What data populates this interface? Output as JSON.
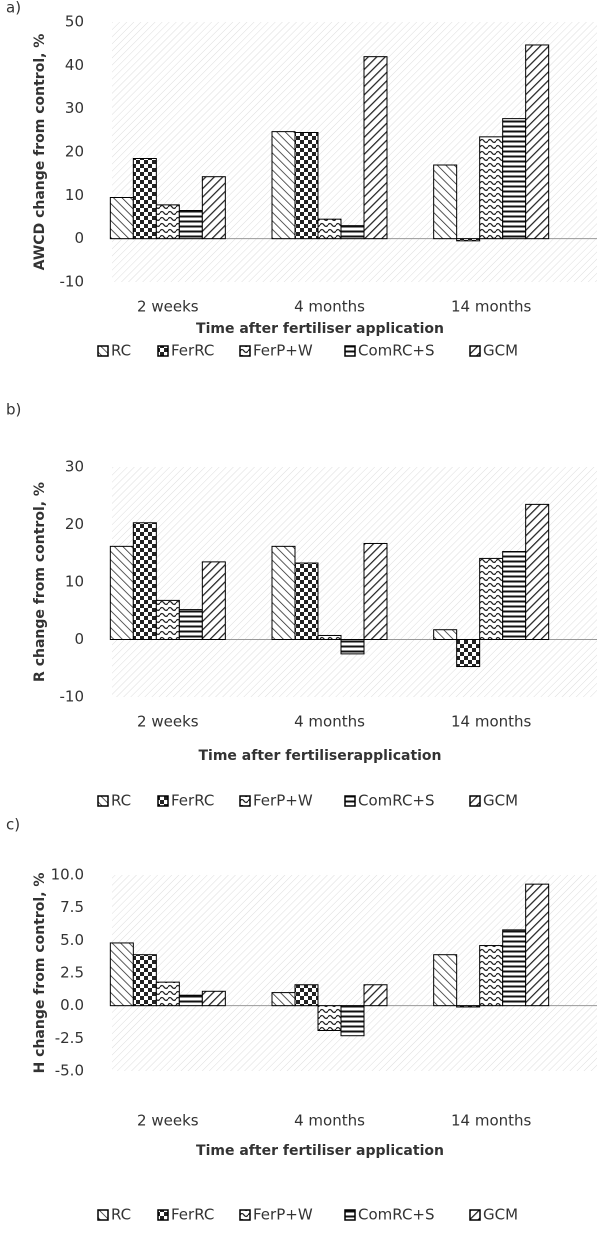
{
  "chart_data": [
    {
      "type": "bar",
      "panel_label": "a)",
      "y_label": "AWCD change from control, %",
      "x_label": "Time after fertiliser application",
      "categories": [
        "2 weeks",
        "4 months",
        "14 months"
      ],
      "series": [
        {
          "name": "RC",
          "color": "#000000",
          "values": [
            9.5,
            24.7,
            17
          ]
        },
        {
          "name": "FerRC",
          "color": "#000000",
          "values": [
            18.5,
            24.5,
            -0.5
          ]
        },
        {
          "name": "FerP+W",
          "color": "#000000",
          "values": [
            7.8,
            4.5,
            23.5
          ]
        },
        {
          "name": "ComRC+S",
          "color": "#000000",
          "values": [
            6.5,
            3,
            27.7
          ]
        },
        {
          "name": "GCM",
          "color": "#000000",
          "values": [
            14.3,
            42,
            44.7
          ]
        }
      ],
      "ylim": [
        -10,
        50
      ],
      "yticks": [
        -10,
        0,
        10,
        20,
        30,
        40,
        50
      ]
    },
    {
      "type": "bar",
      "panel_label": "b)",
      "y_label": "R change from control, %",
      "x_label": "Time after fertiliserapplication",
      "categories": [
        "2 weeks",
        "4 months",
        "14 months"
      ],
      "series": [
        {
          "name": "RC",
          "color": "#000000",
          "values": [
            16.2,
            16.2,
            1.7
          ]
        },
        {
          "name": "FerRC",
          "color": "#000000",
          "values": [
            20.3,
            13.3,
            -4.7
          ]
        },
        {
          "name": "FerP+W",
          "color": "#000000",
          "values": [
            6.8,
            0.7,
            14.1
          ]
        },
        {
          "name": "ComRC+S",
          "color": "#000000",
          "values": [
            5.2,
            -2.5,
            15.3
          ]
        },
        {
          "name": "GCM",
          "color": "#000000",
          "values": [
            13.5,
            16.7,
            23.5
          ]
        }
      ],
      "ylim": [
        -10,
        30
      ],
      "yticks": [
        -10,
        0,
        10,
        20,
        30
      ]
    },
    {
      "type": "bar",
      "panel_label": "c)",
      "y_label": "H change from control, %",
      "x_label": "Time after fertiliser application",
      "categories": [
        "2 weeks",
        "4 months",
        "14 months"
      ],
      "series": [
        {
          "name": "RC",
          "color": "#000000",
          "values": [
            4.8,
            1.0,
            3.9
          ]
        },
        {
          "name": "FerRC",
          "color": "#000000",
          "values": [
            3.9,
            1.6,
            -0.1
          ]
        },
        {
          "name": "FerP+W",
          "color": "#000000",
          "values": [
            1.8,
            -1.9,
            4.6
          ]
        },
        {
          "name": "ComRC+S",
          "color": "#000000",
          "values": [
            0.8,
            -2.3,
            5.8
          ]
        },
        {
          "name": "GCM",
          "color": "#000000",
          "values": [
            1.1,
            1.6,
            9.3
          ]
        }
      ],
      "ylim": [
        -5,
        10
      ],
      "yticks": [
        {
          "value": -5,
          "label": "-5.0"
        },
        {
          "value": -2.5,
          "label": "-2.5"
        },
        {
          "value": 0,
          "label": "0.0"
        },
        {
          "value": 2.5,
          "label": "2.5"
        },
        {
          "value": 5,
          "label": "5.0"
        },
        {
          "value": 7.5,
          "label": "7.5"
        },
        {
          "value": 10,
          "label": "10.0"
        }
      ]
    }
  ]
}
